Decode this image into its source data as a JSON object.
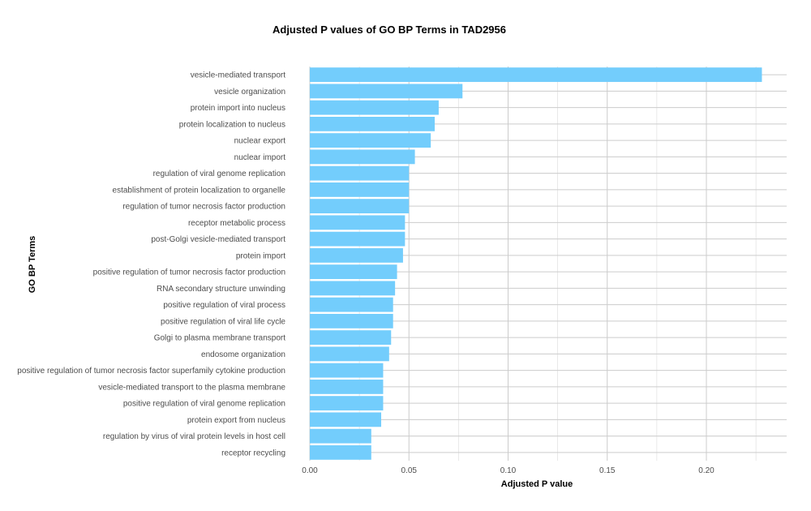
{
  "chart_data": {
    "type": "bar",
    "orientation": "horizontal",
    "title": "Adjusted P values of GO BP Terms in TAD2956",
    "xlabel": "Adjusted P value",
    "ylabel": "GO BP Terms",
    "xlim": [
      0,
      0.24
    ],
    "xticks": [
      "0.00",
      "0.05",
      "0.10",
      "0.15",
      "0.20"
    ],
    "xtick_values": [
      0,
      0.05,
      0.1,
      0.15,
      0.2
    ],
    "grid": true,
    "bar_color": "#73cdfc",
    "categories": [
      "vesicle-mediated transport",
      "vesicle organization",
      "protein import into nucleus",
      "protein localization to nucleus",
      "nuclear export",
      "nuclear import",
      "regulation of viral genome replication",
      "establishment of protein localization to organelle",
      "regulation of tumor necrosis factor production",
      "receptor metabolic process",
      "post-Golgi vesicle-mediated transport",
      "protein import",
      "positive regulation of tumor necrosis factor production",
      "RNA secondary structure unwinding",
      "positive regulation of viral process",
      "positive regulation of viral life cycle",
      "Golgi to plasma membrane transport",
      "endosome organization",
      "positive regulation of tumor necrosis factor superfamily cytokine production",
      "vesicle-mediated transport to the plasma membrane",
      "positive regulation of viral genome replication",
      "protein export from nucleus",
      "regulation by virus of viral protein levels in host cell",
      "receptor recycling"
    ],
    "values": [
      0.228,
      0.077,
      0.065,
      0.063,
      0.061,
      0.053,
      0.05,
      0.05,
      0.05,
      0.048,
      0.048,
      0.047,
      0.044,
      0.043,
      0.042,
      0.042,
      0.041,
      0.04,
      0.037,
      0.037,
      0.037,
      0.036,
      0.031,
      0.031
    ]
  }
}
